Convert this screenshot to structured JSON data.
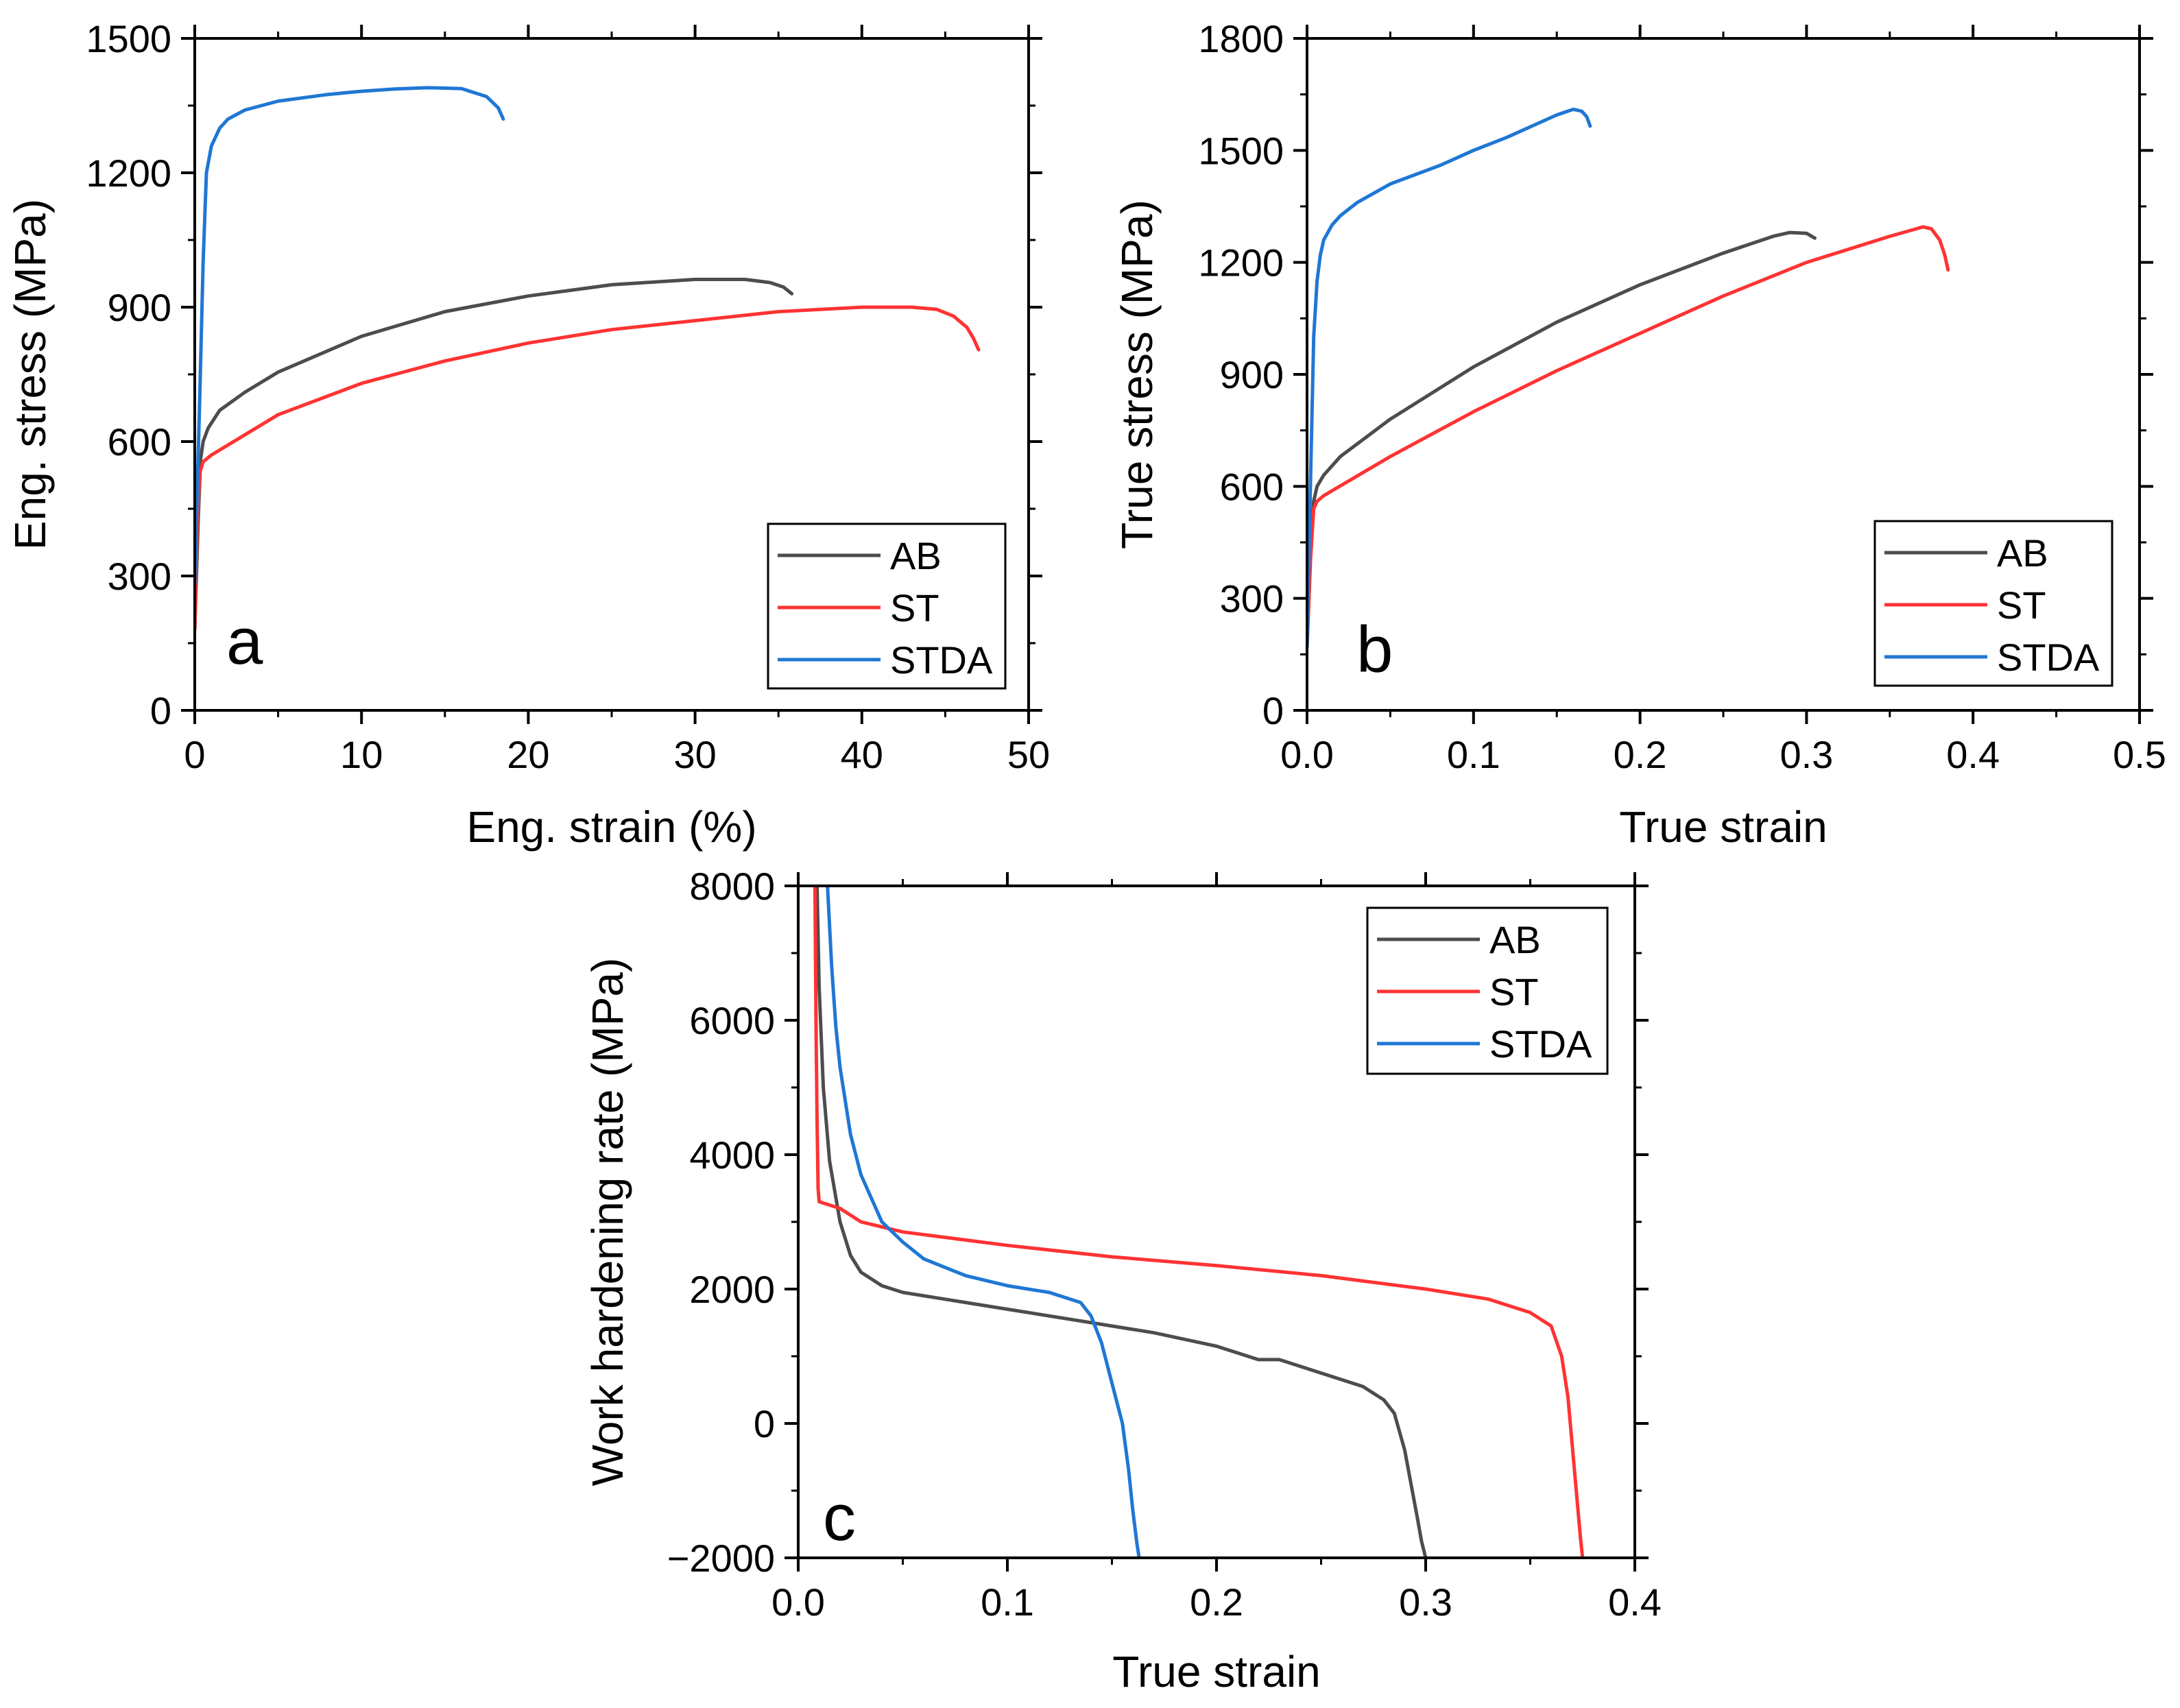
{
  "chart_data": [
    {
      "type": "line",
      "panel_letter": "a",
      "xlabel": "Eng. strain (%)",
      "ylabel": "Eng. stress (MPa)",
      "xlim": [
        0,
        50
      ],
      "ylim": [
        0,
        1500
      ],
      "xticks": [
        0,
        10,
        20,
        30,
        40,
        50
      ],
      "yticks": [
        0,
        300,
        600,
        900,
        1200,
        1500
      ],
      "legend_position": "bottom-right",
      "series": [
        {
          "name": "AB",
          "color": "#4d4d4d",
          "x": [
            0,
            0.2,
            0.35,
            0.5,
            0.8,
            1.5,
            3,
            5,
            10,
            15,
            20,
            25,
            30,
            33,
            34.5,
            35.3,
            35.8
          ],
          "y": [
            180,
            420,
            560,
            600,
            630,
            670,
            710,
            755,
            835,
            890,
            925,
            950,
            962,
            962,
            955,
            945,
            930
          ]
        },
        {
          "name": "ST",
          "color": "#ff3333",
          "x": [
            0,
            0.15,
            0.3,
            0.5,
            1,
            3,
            5,
            10,
            15,
            20,
            25,
            30,
            35,
            40,
            43,
            44.5,
            45.5,
            46.3,
            46.7,
            47
          ],
          "y": [
            180,
            420,
            530,
            555,
            570,
            615,
            660,
            730,
            780,
            820,
            850,
            870,
            890,
            900,
            900,
            895,
            880,
            855,
            830,
            805
          ]
        },
        {
          "name": "STDA",
          "color": "#1f77d4",
          "x": [
            0,
            0.3,
            0.5,
            0.7,
            1,
            1.5,
            2,
            3,
            5,
            8,
            10,
            12,
            14,
            16,
            17.5,
            18.2,
            18.5
          ],
          "y": [
            280,
            700,
            1000,
            1200,
            1260,
            1300,
            1320,
            1340,
            1360,
            1375,
            1382,
            1387,
            1390,
            1388,
            1370,
            1345,
            1320
          ]
        }
      ]
    },
    {
      "type": "line",
      "panel_letter": "b",
      "xlabel": "True strain",
      "ylabel": "True stress (MPa)",
      "xlim": [
        0,
        0.5
      ],
      "ylim": [
        0,
        1800
      ],
      "xticks": [
        "0.0",
        "0.1",
        "0.2",
        "0.3",
        "0.4",
        "0.5"
      ],
      "yticks": [
        0,
        300,
        600,
        900,
        1200,
        1500,
        1800
      ],
      "legend_position": "bottom-right",
      "series": [
        {
          "name": "AB",
          "color": "#4d4d4d",
          "x": [
            0,
            0.002,
            0.004,
            0.006,
            0.01,
            0.02,
            0.05,
            0.1,
            0.15,
            0.2,
            0.25,
            0.28,
            0.29,
            0.3,
            0.305
          ],
          "y": [
            170,
            400,
            560,
            600,
            630,
            680,
            780,
            920,
            1040,
            1140,
            1225,
            1270,
            1280,
            1278,
            1265
          ]
        },
        {
          "name": "ST",
          "color": "#ff3333",
          "x": [
            0,
            0.002,
            0.004,
            0.006,
            0.01,
            0.05,
            0.1,
            0.15,
            0.2,
            0.25,
            0.3,
            0.35,
            0.37,
            0.375,
            0.38,
            0.383,
            0.385
          ],
          "y": [
            170,
            400,
            540,
            560,
            575,
            680,
            800,
            910,
            1010,
            1110,
            1200,
            1270,
            1295,
            1290,
            1260,
            1220,
            1180
          ]
        },
        {
          "name": "STDA",
          "color": "#1f77d4",
          "x": [
            0,
            0.002,
            0.004,
            0.006,
            0.008,
            0.01,
            0.015,
            0.02,
            0.03,
            0.05,
            0.08,
            0.1,
            0.12,
            0.15,
            0.16,
            0.165,
            0.168,
            0.17
          ],
          "y": [
            170,
            600,
            1000,
            1150,
            1220,
            1260,
            1300,
            1325,
            1360,
            1410,
            1460,
            1500,
            1535,
            1595,
            1610,
            1605,
            1590,
            1565
          ]
        }
      ]
    },
    {
      "type": "line",
      "panel_letter": "c",
      "xlabel": "True strain",
      "ylabel": "Work hardening rate (MPa)",
      "xlim": [
        0,
        0.4
      ],
      "ylim": [
        -2000,
        8000
      ],
      "xticks": [
        "0.0",
        "0.1",
        "0.2",
        "0.3",
        "0.4"
      ],
      "yticks": [
        -2000,
        0,
        2000,
        4000,
        6000,
        8000
      ],
      "tick_display": [
        "−2000",
        "0",
        "2000",
        "4000",
        "6000",
        "8000"
      ],
      "legend_position": "top-right",
      "series": [
        {
          "name": "AB",
          "color": "#4d4d4d",
          "x": [
            0.009,
            0.01,
            0.012,
            0.015,
            0.02,
            0.025,
            0.03,
            0.04,
            0.05,
            0.07,
            0.1,
            0.12,
            0.15,
            0.17,
            0.2,
            0.22,
            0.23,
            0.25,
            0.27,
            0.28,
            0.285,
            0.29,
            0.293,
            0.296,
            0.298,
            0.3
          ],
          "y": [
            8000,
            6500,
            5000,
            3900,
            3000,
            2500,
            2250,
            2050,
            1950,
            1850,
            1700,
            1600,
            1450,
            1350,
            1150,
            950,
            950,
            750,
            550,
            350,
            150,
            -400,
            -900,
            -1400,
            -1750,
            -2000
          ]
        },
        {
          "name": "ST",
          "color": "#ff3333",
          "x": [
            0.008,
            0.0085,
            0.009,
            0.0095,
            0.01,
            0.015,
            0.02,
            0.03,
            0.05,
            0.1,
            0.15,
            0.2,
            0.25,
            0.3,
            0.33,
            0.35,
            0.36,
            0.365,
            0.368,
            0.37,
            0.372,
            0.374,
            0.375
          ],
          "y": [
            8000,
            6000,
            4500,
            3500,
            3300,
            3250,
            3200,
            3000,
            2850,
            2650,
            2480,
            2350,
            2200,
            2000,
            1850,
            1650,
            1450,
            1000,
            400,
            -300,
            -1000,
            -1700,
            -2000
          ]
        },
        {
          "name": "STDA",
          "color": "#1f77d4",
          "x": [
            0.014,
            0.016,
            0.018,
            0.02,
            0.025,
            0.03,
            0.04,
            0.05,
            0.06,
            0.08,
            0.1,
            0.12,
            0.135,
            0.14,
            0.145,
            0.15,
            0.155,
            0.158,
            0.16,
            0.162,
            0.163
          ],
          "y": [
            8000,
            6800,
            5900,
            5300,
            4300,
            3700,
            3000,
            2700,
            2450,
            2200,
            2050,
            1950,
            1800,
            1600,
            1200,
            600,
            0,
            -700,
            -1300,
            -1800,
            -2000
          ]
        }
      ]
    }
  ]
}
